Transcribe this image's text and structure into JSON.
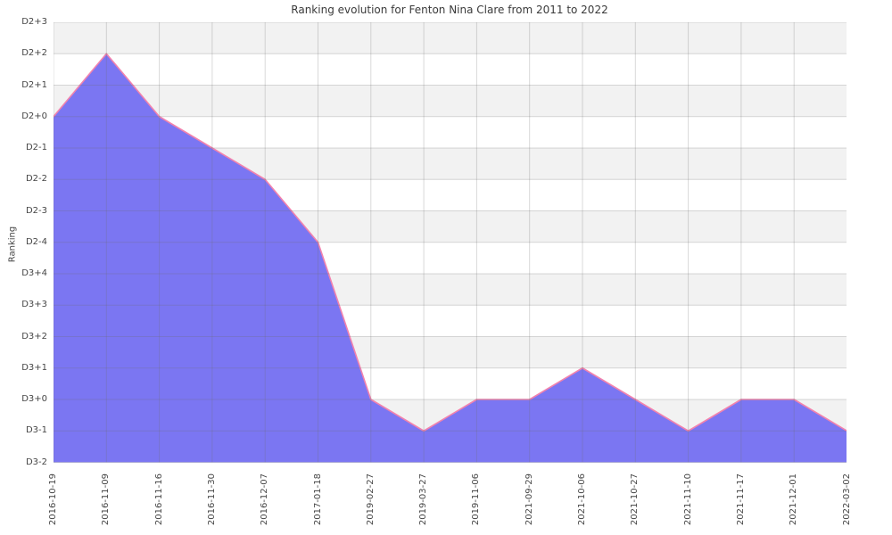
{
  "chart_data": {
    "type": "area",
    "title": "Ranking evolution for Fenton Nina Clare from 2011 to 2022",
    "xlabel": "",
    "ylabel": "Ranking",
    "series_name": "Ranking",
    "legend": false,
    "grid": true,
    "background_bands": "alternating horizontal stripes, gray topmost",
    "x": [
      "2016-10-19",
      "2016-11-09",
      "2016-11-16",
      "2016-11-30",
      "2016-12-07",
      "2017-01-18",
      "2019-02-27",
      "2019-03-27",
      "2019-11-06",
      "2021-09-29",
      "2021-10-06",
      "2021-10-27",
      "2021-11-10",
      "2021-11-17",
      "2021-12-01",
      "2022-03-02"
    ],
    "values": [
      "D2+0",
      "D2+2",
      "D2+0",
      "D2-1",
      "D2-2",
      "D2-4",
      "D3+0",
      "D3-1",
      "D3+0",
      "D3+0",
      "D3+1",
      "D3+0",
      "D3-1",
      "D3+0",
      "D3+0",
      "D3-1"
    ],
    "y_levels_bottom_to_top": [
      "D3-2",
      "D3-1",
      "D3+0",
      "D3+1",
      "D3+2",
      "D3+3",
      "D3+4",
      "D2-4",
      "D2-3",
      "D2-2",
      "D2-1",
      "D2+0",
      "D2+1",
      "D2+2",
      "D2+3"
    ],
    "ylim": [
      "D3-2",
      "D2+3"
    ],
    "colors": {
      "fill": "#7B76F2",
      "line": "#F283AE",
      "band": "#F2F2F2",
      "band_alt": "#FFFFFF",
      "grid": "#6E6E6E",
      "grid_opacity": 0.26,
      "tick_text": "#454545",
      "title_text": "#3A3A3A"
    }
  }
}
